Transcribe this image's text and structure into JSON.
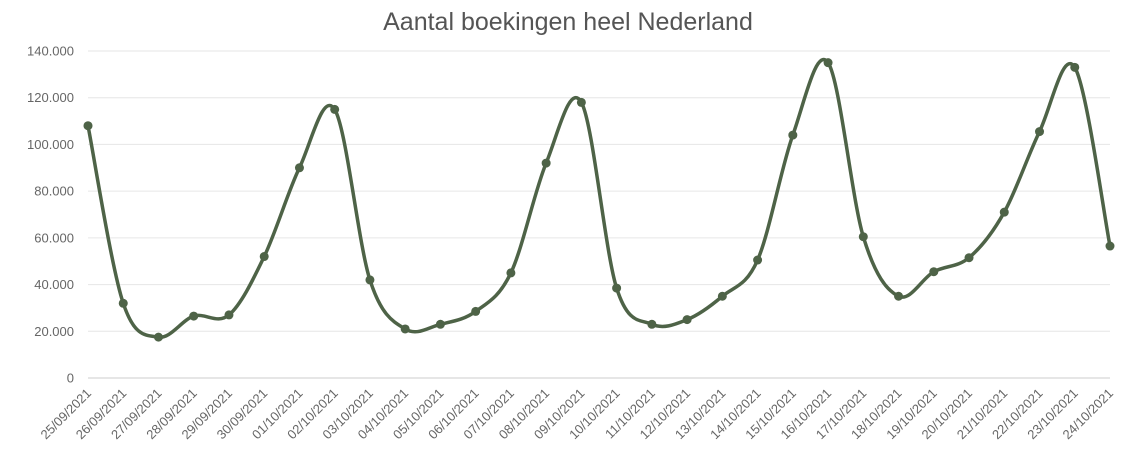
{
  "chart_data": {
    "type": "line",
    "title": "Aantal boekingen heel Nederland",
    "xlabel": "",
    "ylabel": "",
    "x": [
      "25/09/2021",
      "26/09/2021",
      "27/09/2021",
      "28/09/2021",
      "29/09/2021",
      "30/09/2021",
      "01/10/2021",
      "02/10/2021",
      "03/10/2021",
      "04/10/2021",
      "05/10/2021",
      "06/10/2021",
      "07/10/2021",
      "08/10/2021",
      "09/10/2021",
      "10/10/2021",
      "11/10/2021",
      "12/10/2021",
      "13/10/2021",
      "14/10/2021",
      "15/10/2021",
      "16/10/2021",
      "17/10/2021",
      "18/10/2021",
      "19/10/2021",
      "20/10/2021",
      "21/10/2021",
      "22/10/2021",
      "23/10/2021",
      "24/10/2021"
    ],
    "series": [
      {
        "values": [
          108000,
          32000,
          17500,
          26500,
          27000,
          52000,
          90000,
          115000,
          42000,
          21000,
          23000,
          28500,
          45000,
          92000,
          118000,
          38500,
          23000,
          25000,
          35000,
          50500,
          104000,
          135000,
          60500,
          35000,
          45500,
          51500,
          71000,
          105500,
          133000,
          56500
        ],
        "color": "#4e6347"
      }
    ],
    "yticks": [
      "0",
      "20.000",
      "40.000",
      "60.000",
      "80.000",
      "100.000",
      "120.000",
      "140.000"
    ],
    "ylim": [
      0,
      140000
    ],
    "grid": true,
    "legend": "none"
  }
}
